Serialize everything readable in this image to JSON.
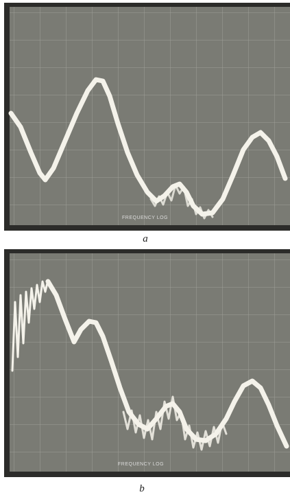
{
  "panels": [
    {
      "caption": "a",
      "axis_label": "FREQUENCY LOG"
    },
    {
      "caption": "b",
      "axis_label": "FREQUENCY LOG"
    }
  ]
}
